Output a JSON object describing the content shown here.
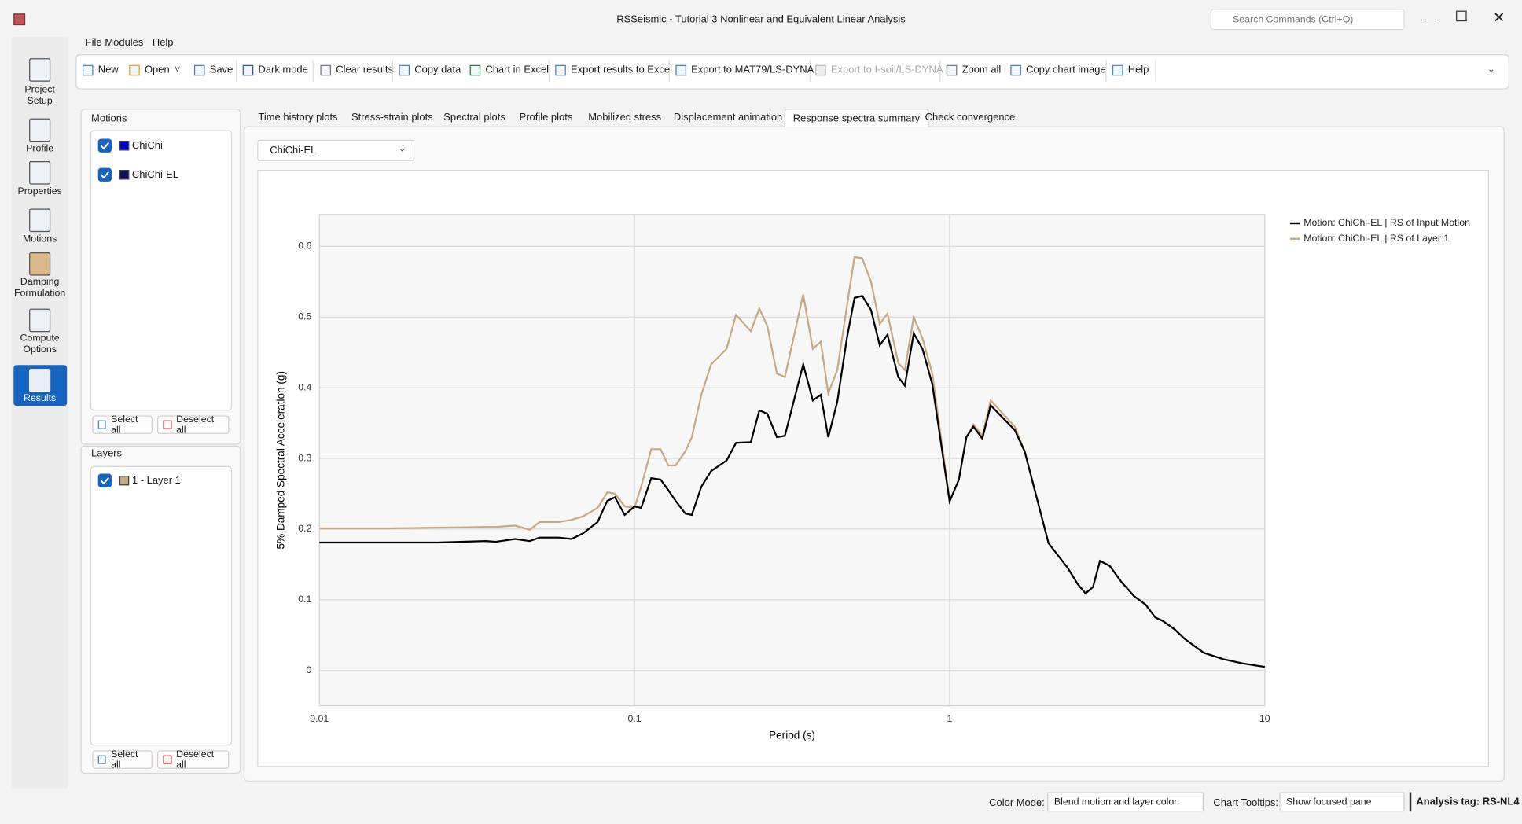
{
  "window": {
    "title": "RSSeismic - Tutorial 3 Nonlinear and Equivalent Linear Analysis",
    "search": "Search Commands (Ctrl+Q)"
  },
  "menu": [
    "File",
    "Modules",
    "Help"
  ],
  "toolbar": [
    "New",
    "Open",
    "Save",
    "Dark mode",
    "Clear results",
    "Copy data",
    "Chart in Excel",
    "Export results to Excel",
    "Export to MAT79/LS-DYNA",
    "Export to I-soil/LS-DYNA",
    "Zoom all",
    "Copy chart image",
    "Help"
  ],
  "sidebar": [
    "Project Setup",
    "Profile",
    "Properties",
    "Motions",
    "Damping Formulation",
    "Compute Options",
    "Results"
  ],
  "motions": {
    "title": "Motions",
    "items": [
      "ChiChi",
      "ChiChi-EL"
    ],
    "select_all": "Select all",
    "deselect_all": "Deselect all"
  },
  "layers": {
    "title": "Layers",
    "items": [
      "1 - Layer 1"
    ],
    "select_all": "Select all",
    "deselect_all": "Deselect all"
  },
  "tabs": [
    "Time history plots",
    "Stress-strain plots",
    "Spectral plots",
    "Profile plots",
    "Mobilized stress",
    "Displacement animation",
    "Response spectra summary",
    "Check convergence"
  ],
  "dropdown": "ChiChi-EL",
  "status": {
    "color_mode_label": "Color Mode:",
    "color_mode": "Blend motion and layer color",
    "tooltips_label": "Chart Tooltips:",
    "tooltips": "Show focused pane",
    "analysis_tag": "Analysis tag: RS-NL4"
  },
  "chart_data": {
    "type": "line",
    "xlabel": "Period (s)",
    "ylabel": "5% Damped Spectral Acceleration (g)",
    "x": [
      0.01,
      0.0167,
      0.0237,
      0.0338,
      0.0363,
      0.0418,
      0.0465,
      0.05,
      0.0575,
      0.0631,
      0.0687,
      0.0764,
      0.082,
      0.0867,
      0.0931,
      0.1,
      0.105,
      0.113,
      0.121,
      0.128,
      0.135,
      0.145,
      0.152,
      0.163,
      0.175,
      0.196,
      0.21,
      0.234,
      0.249,
      0.264,
      0.283,
      0.3,
      0.343,
      0.368,
      0.39,
      0.412,
      0.44,
      0.472,
      0.499,
      0.528,
      0.563,
      0.6,
      0.635,
      0.687,
      0.721,
      0.769,
      0.82,
      0.881,
      1.0,
      1.07,
      1.13,
      1.19,
      1.27,
      1.35,
      1.61,
      1.73,
      2.06,
      2.37,
      2.55,
      2.7,
      2.85,
      3.0,
      3.22,
      3.51,
      3.85,
      4.19,
      4.49,
      4.75,
      5.18,
      5.56,
      6.4,
      7.38,
      8.49,
      10
    ],
    "series": [
      {
        "name": "Motion: ChiChi-EL | RS of Input Motion",
        "color": "#000000",
        "values": [
          0.181,
          0.181,
          0.181,
          0.183,
          0.182,
          0.186,
          0.183,
          0.188,
          0.188,
          0.186,
          0.194,
          0.21,
          0.24,
          0.245,
          0.22,
          0.232,
          0.23,
          0.272,
          0.27,
          0.255,
          0.24,
          0.222,
          0.22,
          0.26,
          0.282,
          0.297,
          0.322,
          0.323,
          0.368,
          0.363,
          0.33,
          0.332,
          0.433,
          0.382,
          0.39,
          0.33,
          0.38,
          0.47,
          0.527,
          0.53,
          0.51,
          0.46,
          0.475,
          0.415,
          0.403,
          0.477,
          0.455,
          0.405,
          0.239,
          0.27,
          0.33,
          0.345,
          0.328,
          0.375,
          0.34,
          0.31,
          0.18,
          0.145,
          0.122,
          0.109,
          0.118,
          0.155,
          0.148,
          0.125,
          0.105,
          0.093,
          0.075,
          0.07,
          0.058,
          0.045,
          0.025,
          0.016,
          0.01,
          0.005
        ]
      },
      {
        "name": "Motion: ChiChi-EL | RS of Layer 1",
        "color": "#c8a882",
        "values": [
          0.201,
          0.201,
          0.202,
          0.203,
          0.203,
          0.205,
          0.199,
          0.21,
          0.21,
          0.213,
          0.218,
          0.23,
          0.252,
          0.25,
          0.232,
          0.23,
          0.26,
          0.313,
          0.313,
          0.29,
          0.29,
          0.31,
          0.33,
          0.39,
          0.433,
          0.455,
          0.503,
          0.48,
          0.512,
          0.487,
          0.42,
          0.415,
          0.532,
          0.455,
          0.465,
          0.392,
          0.425,
          0.515,
          0.585,
          0.583,
          0.55,
          0.49,
          0.505,
          0.435,
          0.425,
          0.5,
          0.47,
          0.42,
          0.24,
          0.27,
          0.33,
          0.348,
          0.332,
          0.382,
          0.345,
          0.31,
          0.18,
          0.145,
          0.122,
          0.109,
          0.118,
          0.155,
          0.148,
          0.125,
          0.105,
          0.093,
          0.075,
          0.07,
          0.058,
          0.045,
          0.025,
          0.016,
          0.01,
          0.005
        ]
      }
    ],
    "xlim": [
      0.01,
      10
    ],
    "ylim": [
      -0.05,
      0.645
    ],
    "xticks": [
      0.01,
      0.1,
      1,
      10
    ],
    "yticks": [
      0,
      0.1,
      0.2,
      0.3,
      0.4,
      0.5,
      0.6
    ],
    "log_x": true,
    "grid": true,
    "legend": "right"
  }
}
